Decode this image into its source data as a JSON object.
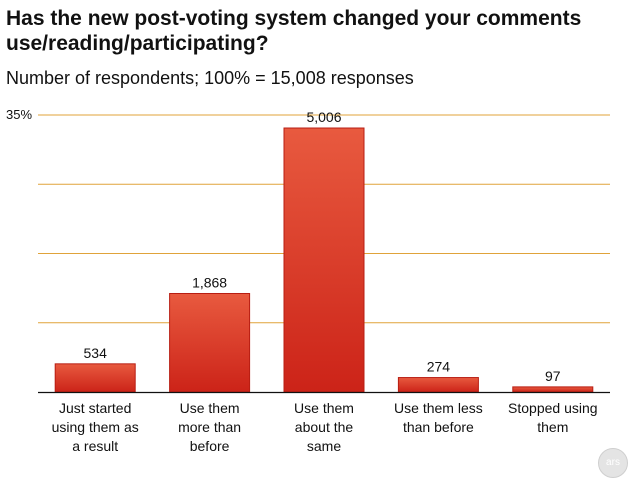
{
  "title": "Has the new post-voting system changed your comments use/reading/participating?",
  "subtitle": "Number of respondents; 100% = 15,008 responses",
  "logo_text": "ars",
  "colors": {
    "bar_top": "#e85a3f",
    "bar_bottom": "#cc2318",
    "bar_edge": "#b81d12",
    "gridline": "#e0a33a",
    "axis": "#111111"
  },
  "chart_data": {
    "type": "bar",
    "title": "Has the new post-voting system changed your comments use/reading/participating?",
    "subtitle": "Number of respondents; 100% = 15,008 responses",
    "total_responses": 15008,
    "categories": [
      "Just started using them as a result",
      "Use them more than before",
      "Use them about the same",
      "Use them less than before",
      "Stopped using them"
    ],
    "category_lines": [
      [
        "Just started",
        "using them as",
        "a result"
      ],
      [
        "Use them",
        "more than",
        "before"
      ],
      [
        "Use them",
        "about the",
        "same"
      ],
      [
        "Use them less",
        "than before"
      ],
      [
        "Stopped using",
        "them"
      ]
    ],
    "values": [
      534,
      1868,
      5006,
      274,
      97
    ],
    "value_labels": [
      "534",
      "1,868",
      "5,006",
      "274",
      "97"
    ],
    "y_axis_unit": "percent of responses",
    "ylim": [
      0,
      35
    ],
    "yticks": [
      0,
      8.75,
      17.5,
      26.25,
      35
    ],
    "ytick_labels": [
      "",
      "",
      "",
      "",
      "35%"
    ],
    "grid": true
  }
}
